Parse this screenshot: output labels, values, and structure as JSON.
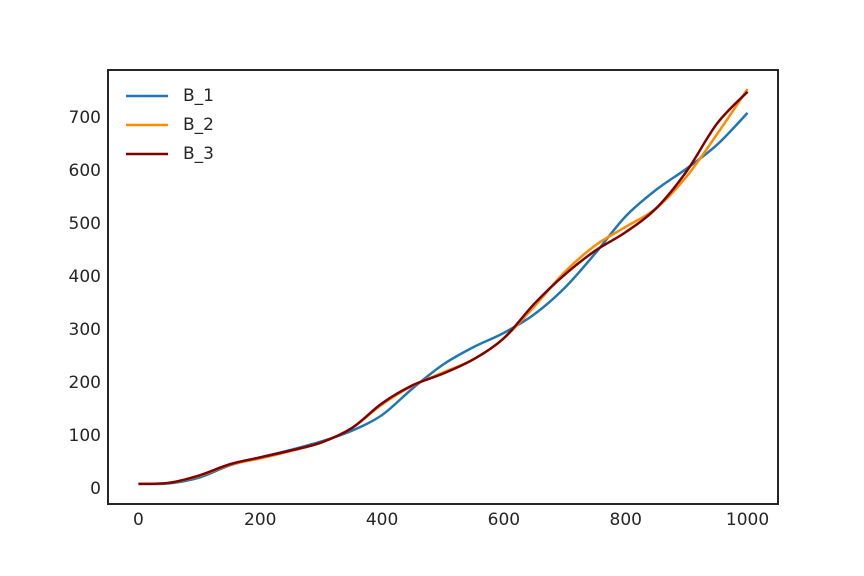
{
  "chart_data": {
    "type": "line",
    "x": [
      0,
      50,
      100,
      150,
      200,
      250,
      300,
      350,
      400,
      450,
      500,
      550,
      600,
      650,
      700,
      750,
      800,
      850,
      900,
      950,
      1000
    ],
    "series": [
      {
        "name": "B_1",
        "color": "#1f77b4",
        "values": [
          10,
          11,
          22,
          45,
          60,
          74,
          90,
          110,
          140,
          190,
          235,
          268,
          295,
          330,
          380,
          445,
          515,
          565,
          605,
          650,
          710
        ]
      },
      {
        "name": "B_2",
        "color": "#ff8c00",
        "values": [
          10,
          12,
          25,
          46,
          58,
          72,
          88,
          115,
          160,
          195,
          220,
          245,
          285,
          345,
          410,
          460,
          495,
          530,
          590,
          670,
          755
        ]
      },
      {
        "name": "B_3",
        "color": "#800000",
        "values": [
          10,
          12,
          26,
          47,
          60,
          73,
          88,
          115,
          162,
          196,
          218,
          245,
          285,
          350,
          405,
          450,
          485,
          530,
          600,
          690,
          750
        ]
      }
    ],
    "xlim": [
      -50,
      1050
    ],
    "ylim": [
      -28,
      791
    ],
    "xticks": [
      0,
      200,
      400,
      600,
      800,
      1000
    ],
    "yticks": [
      0,
      100,
      200,
      300,
      400,
      500,
      600,
      700
    ],
    "grid": false,
    "legend": "upper-left"
  }
}
